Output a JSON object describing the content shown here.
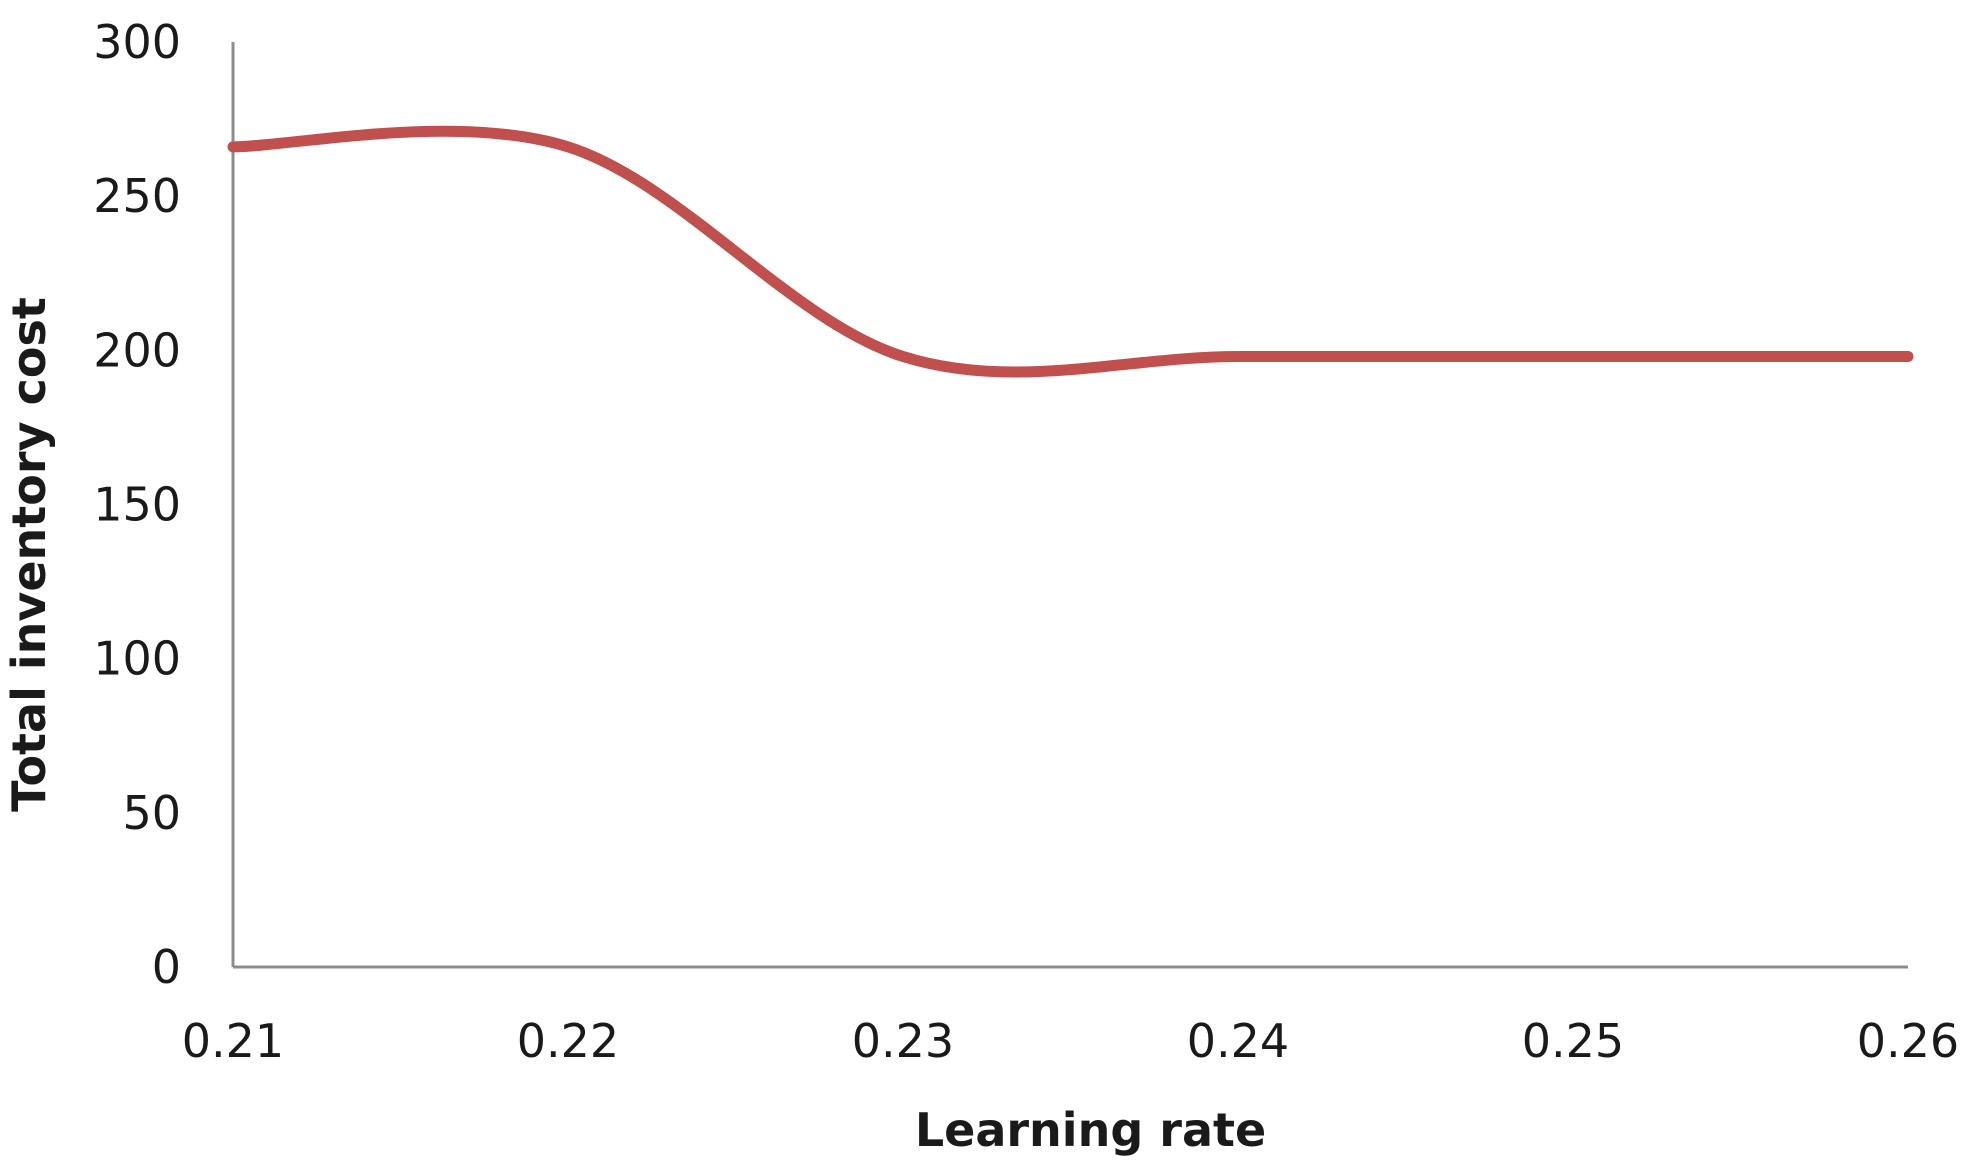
{
  "chart_data": {
    "type": "line",
    "title": "",
    "xlabel": "Learning rate",
    "ylabel": "Total inventory cost",
    "x_ticks": [
      "0.21",
      "0.22",
      "0.23",
      "0.24",
      "0.25",
      "0.26"
    ],
    "y_ticks": [
      "0",
      "50",
      "100",
      "150",
      "200",
      "250",
      "300"
    ],
    "xlim": [
      0.21,
      0.26
    ],
    "ylim": [
      0,
      300
    ],
    "grid": false,
    "legend": "none",
    "series": [
      {
        "color": "#c0504d",
        "smooth": true,
        "points": [
          {
            "x": 0.21,
            "y": 266
          },
          {
            "x": 0.22,
            "y": 266
          },
          {
            "x": 0.23,
            "y": 198
          },
          {
            "x": 0.24,
            "y": 198
          },
          {
            "x": 0.25,
            "y": 198
          },
          {
            "x": 0.26,
            "y": 198
          }
        ]
      }
    ]
  }
}
